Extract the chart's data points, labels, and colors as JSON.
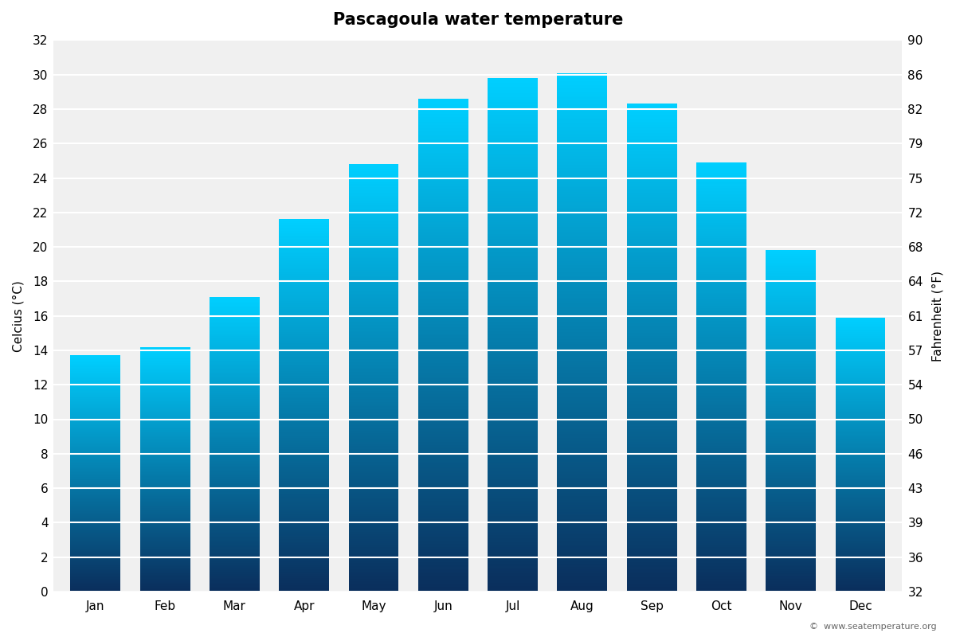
{
  "title": "Pascagoula water temperature",
  "months": [
    "Jan",
    "Feb",
    "Mar",
    "Apr",
    "May",
    "Jun",
    "Jul",
    "Aug",
    "Sep",
    "Oct",
    "Nov",
    "Dec"
  ],
  "celsius_values": [
    13.7,
    14.2,
    17.1,
    21.6,
    24.8,
    28.6,
    29.8,
    30.1,
    28.3,
    24.9,
    19.8,
    15.9
  ],
  "ylabel_left": "Celcius (°C)",
  "ylabel_right": "Fahrenheit (°F)",
  "ylim_celsius": [
    0,
    32
  ],
  "yticks_celsius": [
    0,
    2,
    4,
    6,
    8,
    10,
    12,
    14,
    16,
    18,
    20,
    22,
    24,
    26,
    28,
    30,
    32
  ],
  "yticks_fahrenheit": [
    32,
    36,
    39,
    43,
    46,
    50,
    54,
    57,
    61,
    64,
    68,
    72,
    75,
    79,
    82,
    86,
    90
  ],
  "background_color": "#ffffff",
  "plot_area_color": "#f0f0f0",
  "bar_color_bottom": "#0a2e5c",
  "bar_color_top": "#00cfff",
  "grid_color": "#ffffff",
  "watermark": "©  www.seatemperature.org",
  "title_fontsize": 15,
  "label_fontsize": 11,
  "tick_fontsize": 11,
  "bar_width": 0.72
}
